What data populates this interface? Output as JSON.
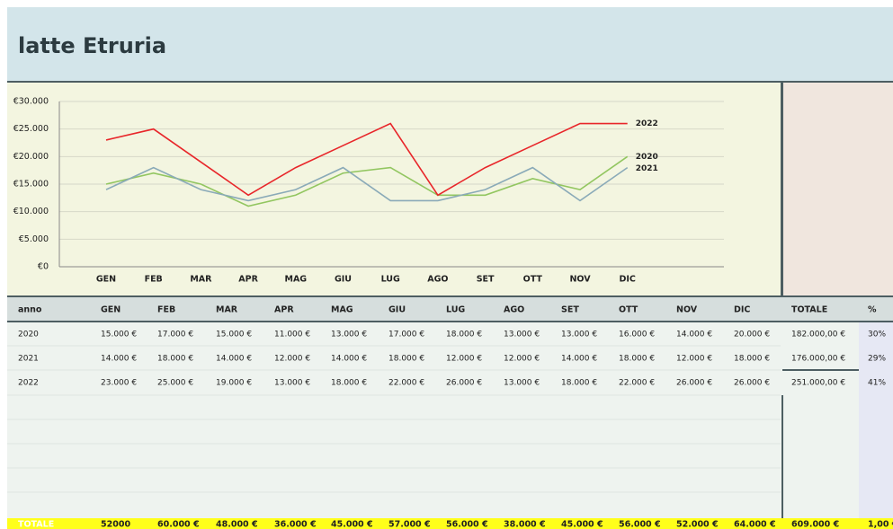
{
  "header": {
    "title": "latte Etruria"
  },
  "chart_data": {
    "type": "line",
    "categories": [
      "GEN",
      "FEB",
      "MAR",
      "APR",
      "MAG",
      "GIU",
      "LUG",
      "AGO",
      "SET",
      "OTT",
      "NOV",
      "DIC"
    ],
    "series": [
      {
        "name": "2020",
        "color": "#92c660",
        "values": [
          15000,
          17000,
          15000,
          11000,
          13000,
          17000,
          18000,
          13000,
          13000,
          16000,
          14000,
          20000
        ]
      },
      {
        "name": "2021",
        "color": "#8aaab8",
        "values": [
          14000,
          18000,
          14000,
          12000,
          14000,
          18000,
          12000,
          12000,
          14000,
          18000,
          12000,
          18000
        ]
      },
      {
        "name": "2022",
        "color": "#e8262a",
        "values": [
          23000,
          25000,
          19000,
          13000,
          18000,
          22000,
          26000,
          13000,
          18000,
          22000,
          26000,
          26000
        ]
      }
    ],
    "ylim": [
      0,
      30000
    ],
    "yticks": [
      {
        "value": 0,
        "label": "€0"
      },
      {
        "value": 5000,
        "label": "€5.000"
      },
      {
        "value": 10000,
        "label": "€10.000"
      },
      {
        "value": 15000,
        "label": "€15.000"
      },
      {
        "value": 20000,
        "label": "€20.000"
      },
      {
        "value": 25000,
        "label": "€25.000"
      },
      {
        "value": 30000,
        "label": "€30.000"
      }
    ],
    "grid": true
  },
  "table": {
    "columns": [
      "anno",
      "GEN",
      "FEB",
      "MAR",
      "APR",
      "MAG",
      "GIU",
      "LUG",
      "AGO",
      "SET",
      "OTT",
      "NOV",
      "DIC",
      "TOTALE",
      "%"
    ],
    "rows": [
      [
        "2020",
        "15.000 €",
        "17.000 €",
        "15.000 €",
        "11.000 €",
        "13.000 €",
        "17.000 €",
        "18.000 €",
        "13.000 €",
        "13.000 €",
        "16.000 €",
        "14.000 €",
        "20.000 €",
        "182.000,00 €",
        "30%"
      ],
      [
        "2021",
        "14.000 €",
        "18.000 €",
        "14.000 €",
        "12.000 €",
        "14.000 €",
        "18.000 €",
        "12.000 €",
        "12.000 €",
        "14.000 €",
        "18.000 €",
        "12.000 €",
        "18.000 €",
        "176.000,00 €",
        "29%"
      ],
      [
        "2022",
        "23.000 €",
        "25.000 €",
        "19.000 €",
        "13.000 €",
        "18.000 €",
        "22.000 €",
        "26.000 €",
        "13.000 €",
        "18.000 €",
        "22.000 €",
        "26.000 €",
        "26.000 €",
        "251.000,00 €",
        "41%"
      ]
    ],
    "totals": [
      "TOTALE",
      "52000",
      "60.000 €",
      "48.000 €",
      "36.000 €",
      "45.000 €",
      "57.000 €",
      "56.000 €",
      "38.000 €",
      "45.000 €",
      "56.000 €",
      "52.000 €",
      "64.000 €",
      "609.000 €",
      "1,00 €"
    ]
  }
}
